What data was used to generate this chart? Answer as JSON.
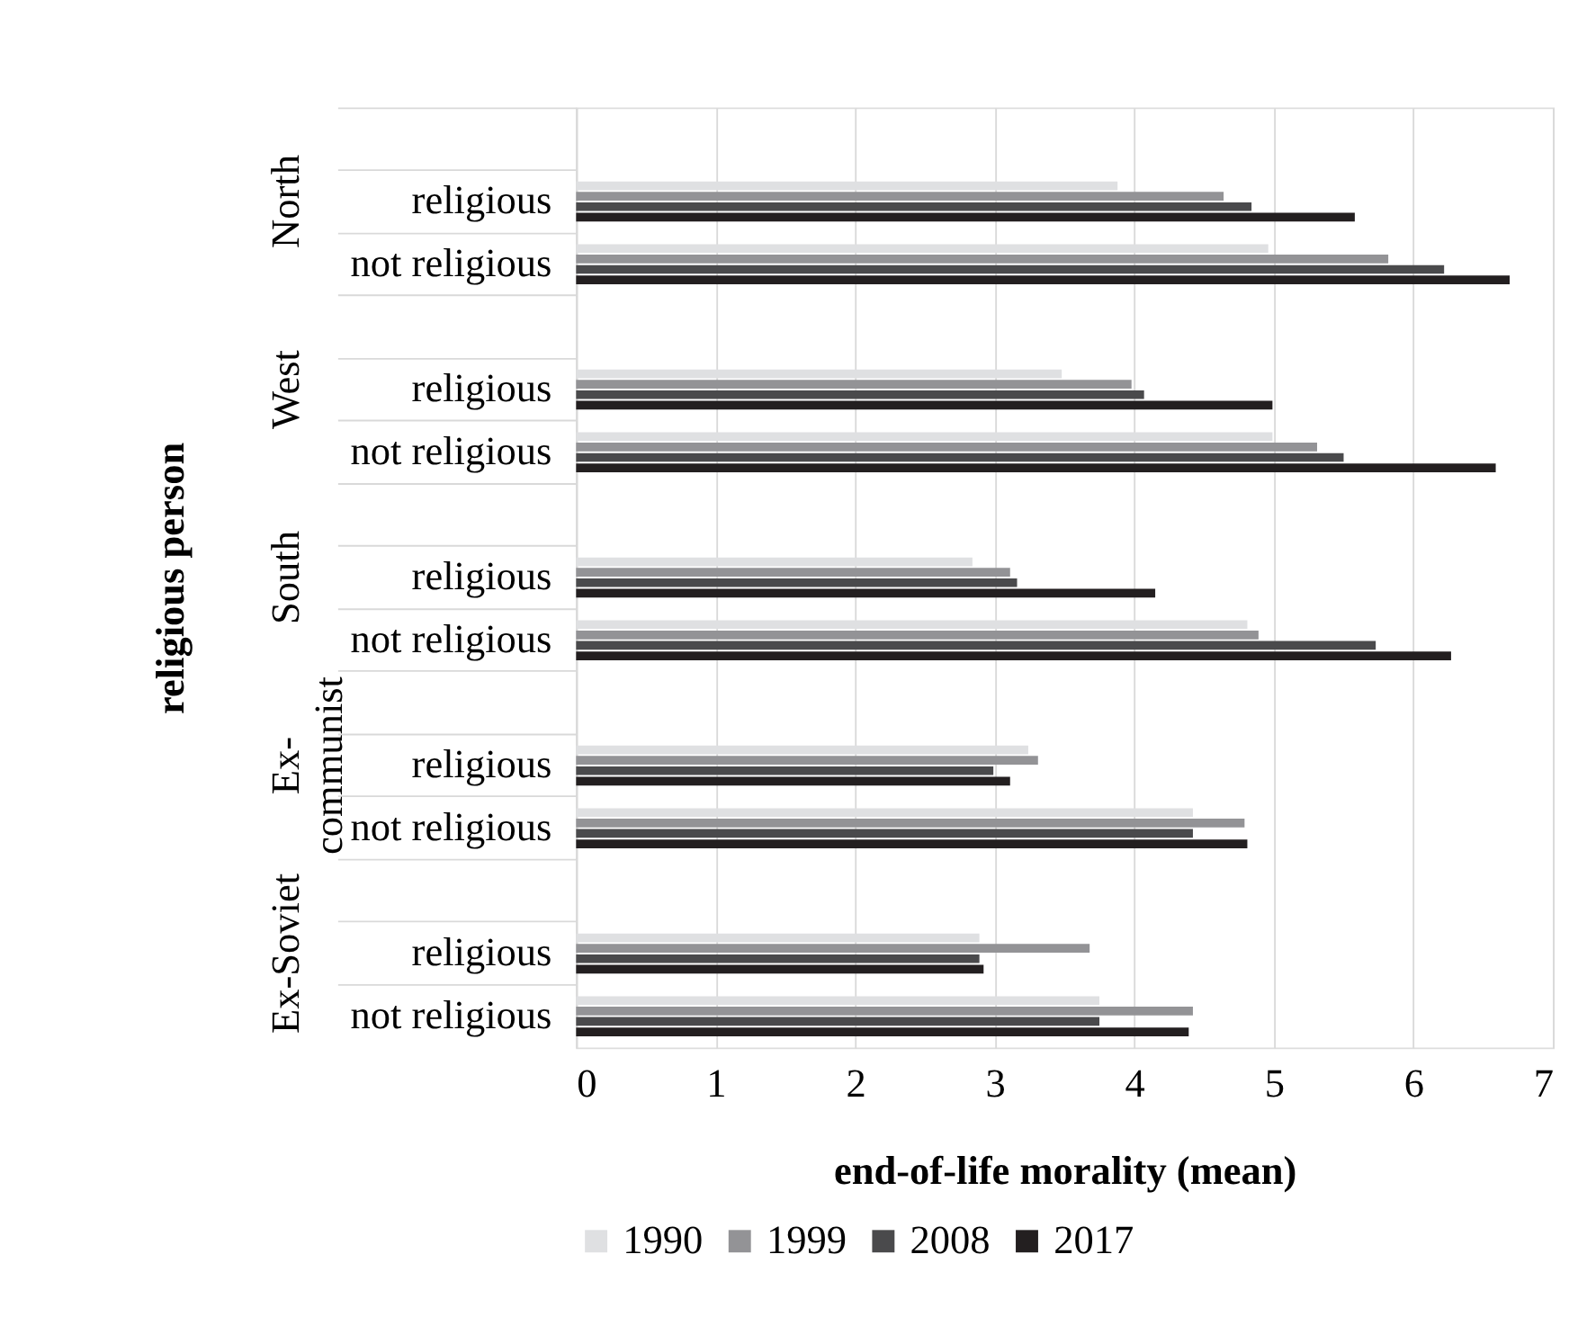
{
  "chart_data": {
    "type": "bar",
    "orientation": "horizontal",
    "xlabel": "end-of-life morality (mean)",
    "ylabel": "religious person",
    "categories": [
      null,
      "religious",
      "not religious",
      null,
      "religious",
      "not religious",
      null,
      "religious",
      "not religious",
      null,
      "religious",
      "not religious",
      null,
      "religious",
      "not religious"
    ],
    "annotations": [
      "North",
      "West",
      "South",
      "Ex-\ncommunist",
      "Ex-Soviet"
    ],
    "series": [
      {
        "name": "1990",
        "color": "#dfe0e2",
        "values": [
          null,
          3.88,
          4.96,
          null,
          3.48,
          4.99,
          null,
          2.84,
          4.81,
          null,
          3.24,
          4.42,
          null,
          2.89,
          3.75
        ]
      },
      {
        "name": "1999",
        "color": "#939396",
        "values": [
          null,
          4.64,
          5.82,
          null,
          3.98,
          5.31,
          null,
          3.11,
          4.89,
          null,
          3.31,
          4.79,
          null,
          3.68,
          4.42
        ]
      },
      {
        "name": "2008",
        "color": "#4a4a4c",
        "values": [
          null,
          4.84,
          6.22,
          null,
          4.07,
          5.5,
          null,
          3.16,
          5.73,
          null,
          2.99,
          4.42,
          null,
          2.89,
          3.75
        ]
      },
      {
        "name": "2017",
        "color": "#231f20",
        "values": [
          null,
          5.58,
          6.69,
          null,
          4.99,
          6.59,
          null,
          4.15,
          6.27,
          null,
          3.11,
          4.81,
          null,
          2.92,
          4.39
        ]
      }
    ],
    "xlim": [
      0,
      7
    ],
    "xticks": [
      0,
      1,
      2,
      3,
      4,
      5,
      6,
      7
    ],
    "grid": "x",
    "legend": "bottom"
  }
}
